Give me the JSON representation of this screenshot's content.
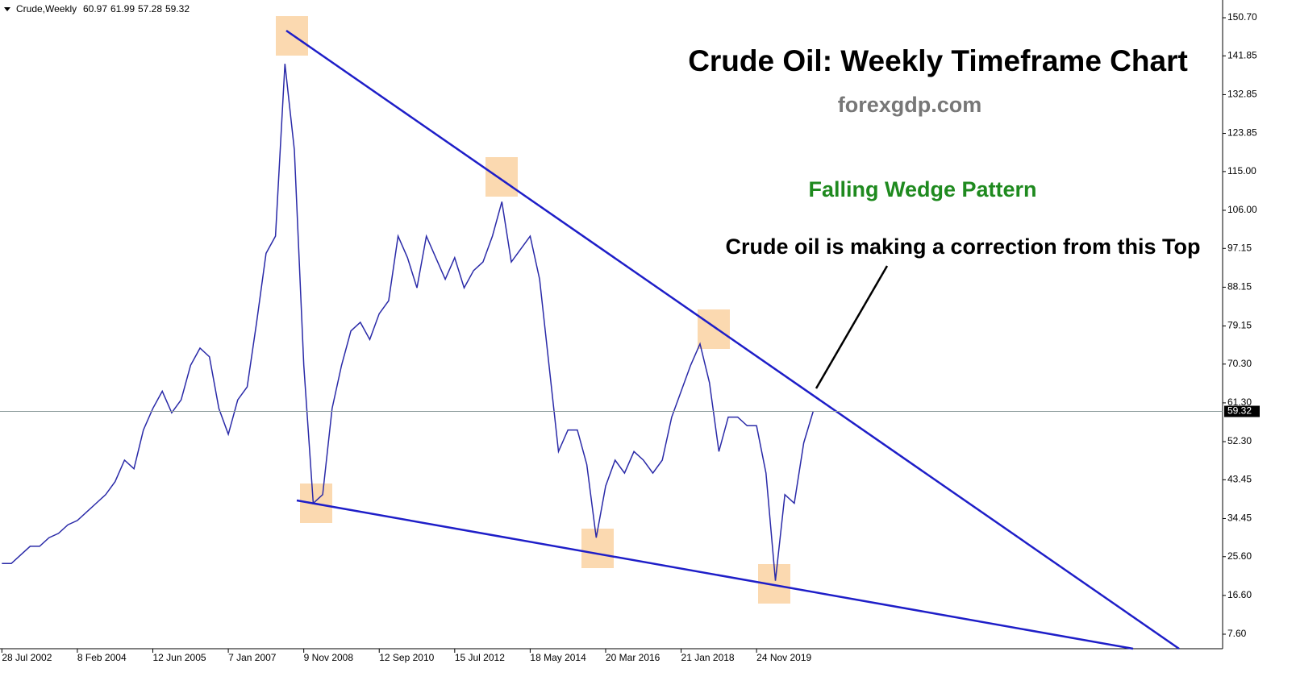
{
  "chart_data": {
    "type": "line",
    "symbol": "Crude,Weekly",
    "ohlc": [
      60.97,
      61.99,
      57.28,
      59.32
    ],
    "title": "Crude Oil: Weekly Timeframe Chart",
    "subtitle": "forexgdp.com",
    "annotations": [
      "Falling Wedge Pattern",
      "Crude oil is making a correction from this Top"
    ],
    "x": [
      0,
      10,
      20,
      30,
      40,
      50,
      60,
      70,
      80,
      90,
      100,
      110,
      120,
      130,
      140,
      150,
      160,
      170,
      180,
      190,
      200,
      210,
      220,
      230,
      240,
      250,
      260,
      270,
      280,
      290,
      300,
      310,
      320,
      330,
      340,
      350,
      360,
      370,
      380,
      390,
      400,
      410,
      420,
      430,
      440,
      450,
      460,
      470,
      480,
      490,
      500,
      510,
      520,
      530,
      540,
      550,
      560,
      570,
      580,
      590,
      600,
      610,
      620,
      630,
      640,
      650,
      660,
      670,
      680,
      690,
      700,
      710,
      720,
      730,
      740,
      750,
      760,
      770,
      780,
      790,
      800,
      810,
      820,
      830,
      840,
      850,
      860
    ],
    "series": [
      {
        "name": "Crude",
        "color": "#2a2aa8",
        "values": [
          24,
          24,
          26,
          28,
          28,
          30,
          31,
          33,
          34,
          36,
          38,
          40,
          43,
          48,
          46,
          55,
          60,
          64,
          59,
          62,
          70,
          74,
          72,
          60,
          54,
          62,
          65,
          80,
          96,
          100,
          140,
          120,
          70,
          38,
          40,
          60,
          70,
          78,
          80,
          76,
          82,
          85,
          100,
          95,
          88,
          100,
          95,
          90,
          95,
          88,
          92,
          94,
          100,
          108,
          94,
          97,
          100,
          90,
          70,
          50,
          55,
          55,
          47,
          30,
          42,
          48,
          45,
          50,
          48,
          45,
          48,
          58,
          64,
          70,
          75,
          66,
          50,
          58,
          58,
          56,
          56,
          45,
          20,
          40,
          38,
          52,
          59.32
        ]
      }
    ],
    "xlim": [
      -2,
      1294
    ],
    "xticks": [
      {
        "value": 0,
        "label": "28 Jul 2002"
      },
      {
        "value": 80,
        "label": "8 Feb 2004"
      },
      {
        "value": 160,
        "label": "12 Jun 2005"
      },
      {
        "value": 240,
        "label": "7 Jan 2007"
      },
      {
        "value": 320,
        "label": "9 Nov 2008"
      },
      {
        "value": 400,
        "label": "12 Sep 2010"
      },
      {
        "value": 480,
        "label": "15 Jul 2012"
      },
      {
        "value": 560,
        "label": "18 May 2014"
      },
      {
        "value": 640,
        "label": "20 Mar 2016"
      },
      {
        "value": 720,
        "label": "21 Jan 2018"
      },
      {
        "value": 800,
        "label": "24 Nov 2019"
      }
    ],
    "ylim": [
      4.23,
      154.82
    ],
    "yticks": [
      {
        "value": 7.6,
        "label": "7.60"
      },
      {
        "value": 16.6,
        "label": "16.60"
      },
      {
        "value": 25.6,
        "label": "25.60"
      },
      34.45,
      43.45,
      {
        "value": 52.3,
        "label": "52.30"
      },
      {
        "value": 61.3,
        "label": "61.30"
      },
      {
        "value": 70.3,
        "label": "70.30"
      },
      79.15,
      88.15,
      97.15,
      {
        "value": 106,
        "label": "106.00"
      },
      {
        "value": 115,
        "label": "115.00"
      },
      123.85,
      132.85,
      141.85,
      {
        "value": 150.7,
        "label": "150.70"
      }
    ]
  }
}
